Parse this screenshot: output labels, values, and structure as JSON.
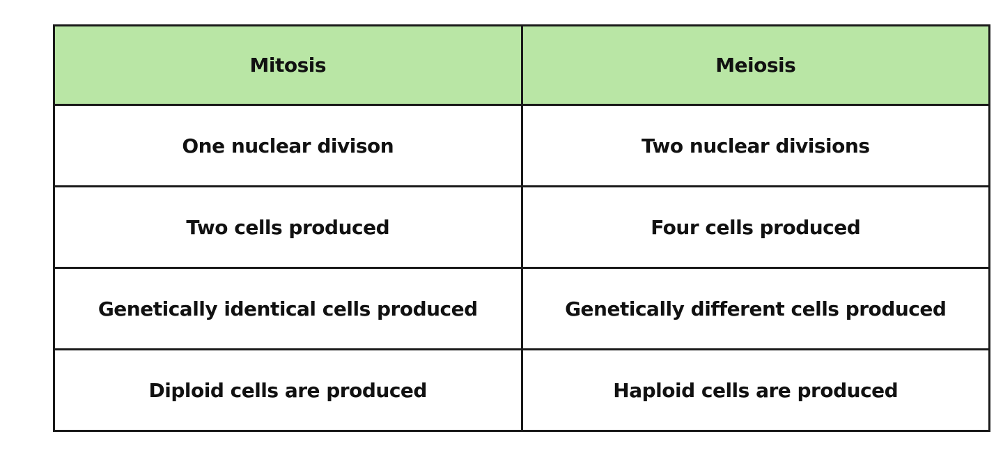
{
  "table": {
    "header_background": "#b9e6a5",
    "headers": [
      "Mitosis",
      "Meiosis"
    ],
    "rows": [
      [
        "One nuclear divison",
        "Two nuclear divisions"
      ],
      [
        "Two cells produced",
        "Four cells produced"
      ],
      [
        "Genetically identical cells produced",
        "Genetically different cells produced"
      ],
      [
        "Diploid cells are produced",
        "Haploid cells are produced"
      ]
    ]
  }
}
